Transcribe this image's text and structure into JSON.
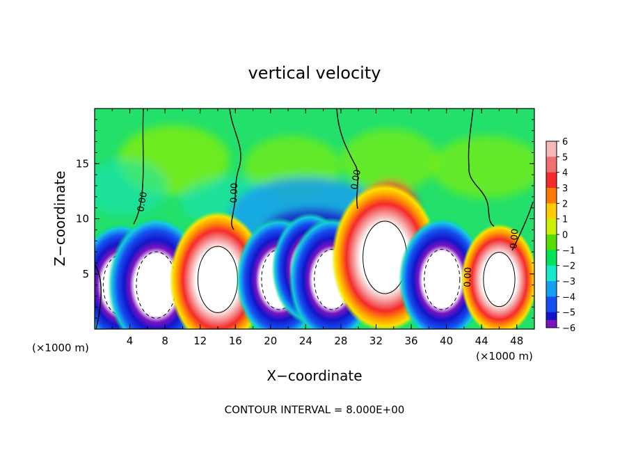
{
  "chart_data": {
    "type": "heatmap",
    "title": "vertical velocity",
    "xlabel": "X−coordinate",
    "ylabel": "Z−coordinate",
    "xlim": [
      0,
      50000
    ],
    "ylim": [
      0,
      20000
    ],
    "x_unit_note": "(×1000 m)",
    "y_unit_note": "(×1000 m)",
    "x_ticks": [
      "4",
      "8",
      "12",
      "16",
      "20",
      "24",
      "28",
      "32",
      "36",
      "40",
      "44",
      "48"
    ],
    "y_ticks": [
      "5",
      "10",
      "15"
    ],
    "colorbar": {
      "labels": [
        "6",
        "5",
        "4",
        "3",
        "2",
        "1",
        "0",
        "−1",
        "−2",
        "−3",
        "−4",
        "−5",
        "−6"
      ],
      "colors": [
        "#f5b8b8",
        "#f07070",
        "#f52a2a",
        "#ff7a00",
        "#ffcc00",
        "#ccf000",
        "#55dd00",
        "#00e45a",
        "#18e8cc",
        "#14a0f0",
        "#1450f0",
        "#1414c8",
        "#7a14c0"
      ]
    },
    "contour_label": "0.00",
    "footer": "CONTOUR INTERVAL = 8.000E+00",
    "features": [
      {
        "kind": "downdraft",
        "x": 3000,
        "z": 4000,
        "w": -12
      },
      {
        "kind": "downdraft",
        "x": 7000,
        "z": 4000,
        "w": -14
      },
      {
        "kind": "updraft",
        "x": 14000,
        "z": 4500,
        "w": 14
      },
      {
        "kind": "downdraft",
        "x": 21000,
        "z": 4500,
        "w": -12
      },
      {
        "kind": "downdraft",
        "x": 24500,
        "z": 5500,
        "w": -10
      },
      {
        "kind": "downdraft",
        "x": 27000,
        "z": 4500,
        "w": -12
      },
      {
        "kind": "updraft",
        "x": 33000,
        "z": 6500,
        "w": 16
      },
      {
        "kind": "downdraft",
        "x": 39500,
        "z": 4500,
        "w": -12
      },
      {
        "kind": "updraft",
        "x": 46000,
        "z": 4500,
        "w": 10
      }
    ]
  }
}
